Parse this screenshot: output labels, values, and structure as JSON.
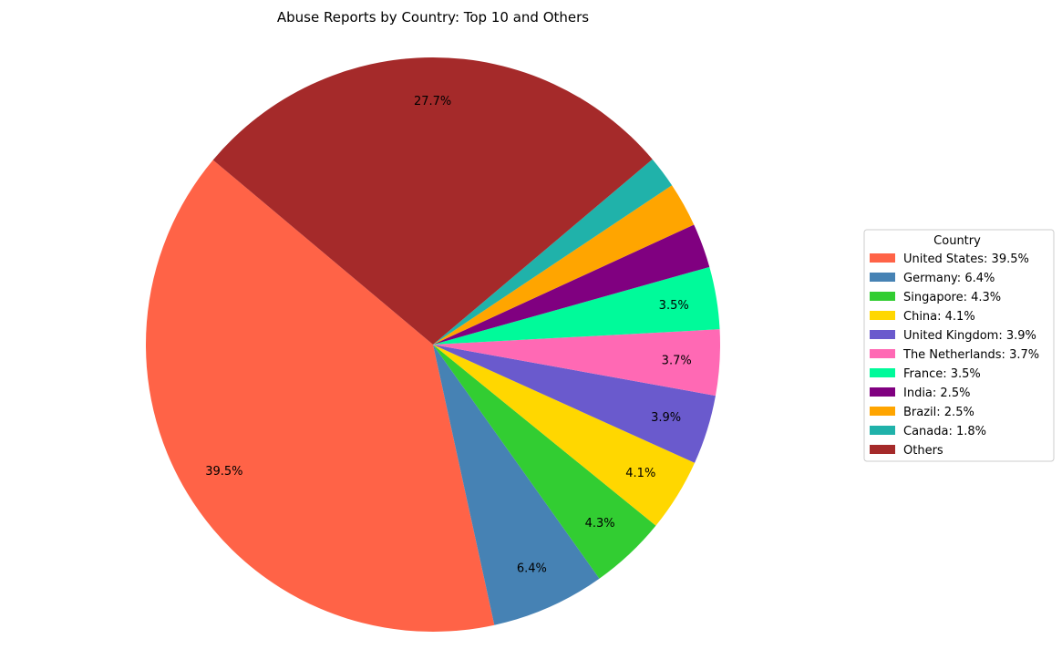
{
  "chart_data": {
    "type": "pie",
    "title": "Abuse Reports by Country: Top 10 and Others",
    "categories": [
      "United States",
      "Germany",
      "Singapore",
      "China",
      "United Kingdom",
      "The Netherlands",
      "France",
      "India",
      "Brazil",
      "Canada",
      "Others"
    ],
    "values": [
      39.5,
      6.4,
      4.3,
      4.1,
      3.9,
      3.7,
      3.5,
      2.5,
      2.5,
      1.8,
      27.7
    ],
    "colors": [
      "#ff6347",
      "#4682b4",
      "#32cd32",
      "#ffd700",
      "#6a5acd",
      "#ff69b4",
      "#00fa9a",
      "#800080",
      "#ffa500",
      "#20b2aa",
      "#a52a2a"
    ],
    "slice_labels": [
      "39.5%",
      "6.4%",
      "4.3%",
      "4.1%",
      "3.9%",
      "3.7%",
      "3.5%",
      "",
      "",
      "",
      "27.7%"
    ],
    "start_angle_deg": 140,
    "direction": "counterclockwise",
    "legend": {
      "title": "Country",
      "placement": "center-right",
      "entries": [
        "United States: 39.5%",
        "Germany: 6.4%",
        "Singapore: 4.3%",
        "China: 4.1%",
        "United Kingdom: 3.9%",
        "The Netherlands: 3.7%",
        "France: 3.5%",
        "India: 2.5%",
        "Brazil: 2.5%",
        "Canada: 1.8%",
        "Others"
      ]
    }
  }
}
